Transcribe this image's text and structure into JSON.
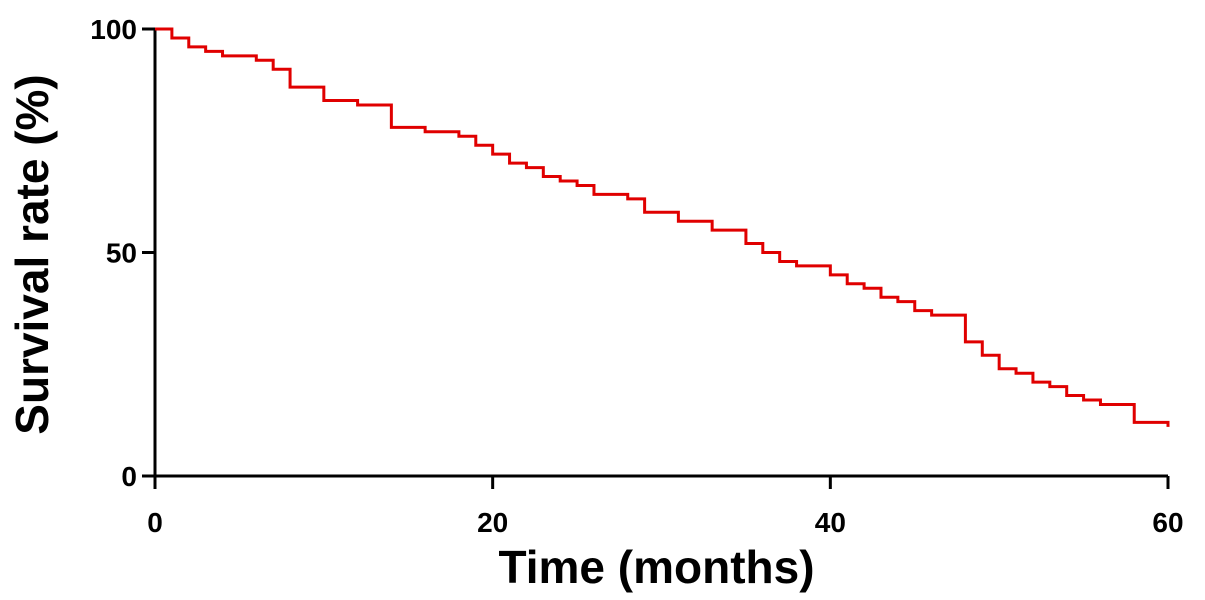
{
  "chart_data": {
    "type": "line",
    "title": "",
    "xlabel": "Time (months)",
    "ylabel": "Survival rate (%)",
    "xlim": [
      0,
      60
    ],
    "ylim": [
      0,
      100
    ],
    "xticks": [
      0,
      20,
      40,
      60
    ],
    "yticks": [
      0,
      50,
      100
    ],
    "grid": false,
    "legend": "none",
    "step": true,
    "series": [
      {
        "color": "#e00000",
        "x": [
          0,
          1,
          2,
          3,
          4,
          6,
          7,
          8,
          10,
          12,
          14,
          16,
          18,
          19,
          20,
          21,
          22,
          23,
          24,
          25,
          26,
          28,
          29,
          31,
          33,
          35,
          36,
          37,
          38,
          40,
          41,
          42,
          43,
          44,
          45,
          46,
          48,
          49,
          50,
          51,
          52,
          53,
          54,
          55,
          56,
          58,
          60
        ],
        "y": [
          100,
          98,
          96,
          95,
          94,
          93,
          91,
          87,
          84,
          83,
          78,
          77,
          76,
          74,
          72,
          70,
          69,
          67,
          66,
          65,
          63,
          62,
          59,
          57,
          55,
          52,
          50,
          48,
          47,
          45,
          43,
          42,
          40,
          39,
          37,
          36,
          30,
          27,
          24,
          23,
          21,
          20,
          18,
          17,
          16,
          12,
          11
        ]
      }
    ]
  }
}
